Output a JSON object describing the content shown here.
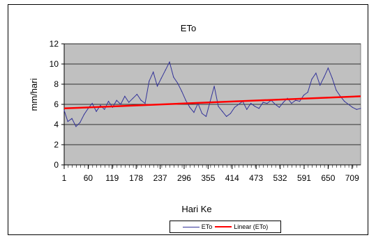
{
  "chart_data": {
    "type": "line",
    "title": "ETo",
    "xlabel": "Hari Ke",
    "ylabel": "mm/hari",
    "ylim": [
      0,
      12
    ],
    "yticks": [
      "0",
      "2",
      "4",
      "6",
      "8",
      "10",
      "12"
    ],
    "xlim": [
      1,
      730
    ],
    "xticks": [
      "1",
      "60",
      "119",
      "178",
      "237",
      "296",
      "355",
      "414",
      "473",
      "532",
      "591",
      "650",
      "709"
    ],
    "grid": true,
    "legend_position": "bottom",
    "colors": {
      "plot_bg": "#c0c0c0",
      "eto": "#333399",
      "linear": "#ff0000"
    },
    "series": [
      {
        "name": "ETo",
        "x": [
          1,
          10,
          20,
          30,
          40,
          50,
          60,
          70,
          80,
          90,
          100,
          110,
          120,
          130,
          140,
          150,
          160,
          170,
          180,
          190,
          200,
          210,
          220,
          230,
          240,
          250,
          260,
          270,
          280,
          290,
          300,
          310,
          320,
          330,
          340,
          350,
          360,
          370,
          380,
          390,
          400,
          410,
          420,
          430,
          440,
          450,
          460,
          470,
          480,
          490,
          500,
          510,
          520,
          530,
          540,
          550,
          560,
          570,
          580,
          590,
          600,
          610,
          620,
          630,
          640,
          650,
          660,
          670,
          680,
          690,
          700,
          710,
          720,
          730
        ],
        "y": [
          5.4,
          4.3,
          4.6,
          3.8,
          4.2,
          5.0,
          5.6,
          6.1,
          5.3,
          5.9,
          5.5,
          6.3,
          5.7,
          6.4,
          6.0,
          6.8,
          6.2,
          6.6,
          7.0,
          6.4,
          6.1,
          8.3,
          9.2,
          7.8,
          8.6,
          9.4,
          10.2,
          8.7,
          8.1,
          7.3,
          6.4,
          5.7,
          5.2,
          6.1,
          5.1,
          4.8,
          6.3,
          7.8,
          5.8,
          5.3,
          4.8,
          5.1,
          5.7,
          6.0,
          6.3,
          5.5,
          6.1,
          5.8,
          5.6,
          6.2,
          6.1,
          6.4,
          6.0,
          5.7,
          6.2,
          6.6,
          6.1,
          6.4,
          6.3,
          6.9,
          7.2,
          8.5,
          9.1,
          7.9,
          8.7,
          9.6,
          8.6,
          7.4,
          6.8,
          6.3,
          6.0,
          5.7,
          5.5,
          5.6
        ]
      },
      {
        "name": "Linear (ETo)",
        "x": [
          1,
          730
        ],
        "y": [
          5.6,
          6.8
        ]
      }
    ]
  }
}
